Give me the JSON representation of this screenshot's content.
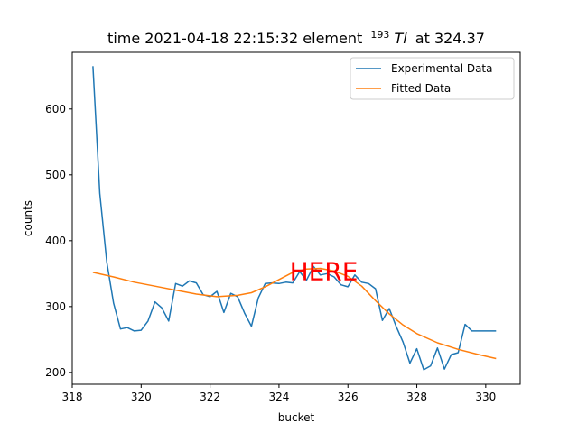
{
  "chart_data": {
    "type": "line",
    "title_main": "time 2021-04-18 22:15:32 element",
    "title_isotope_mass": "193",
    "title_element": "Tl",
    "title_suffix": "at 324.37",
    "xlabel": "bucket",
    "ylabel": "counts",
    "xlim": [
      318,
      331
    ],
    "ylim": [
      182,
      686
    ],
    "xticks": [
      318,
      320,
      322,
      324,
      326,
      328,
      330
    ],
    "yticks": [
      200,
      300,
      400,
      500,
      600
    ],
    "grid": false,
    "legend_position": "top-right",
    "annotation": {
      "text": "HERE",
      "x": 325.3,
      "y": 340,
      "color": "#ff0000"
    },
    "series": [
      {
        "name": "Experimental Data",
        "color": "#1f77b4",
        "x": [
          318.6,
          318.8,
          319.0,
          319.2,
          319.4,
          319.6,
          319.8,
          320.0,
          320.2,
          320.4,
          320.6,
          320.8,
          321.0,
          321.2,
          321.4,
          321.6,
          321.8,
          322.0,
          322.2,
          322.4,
          322.6,
          322.8,
          323.0,
          323.2,
          323.4,
          323.6,
          323.8,
          324.0,
          324.2,
          324.4,
          324.6,
          324.8,
          325.0,
          325.2,
          325.4,
          325.6,
          325.8,
          326.0,
          326.2,
          326.4,
          326.6,
          326.8,
          327.0,
          327.2,
          327.4,
          327.6,
          327.8,
          328.0,
          328.2,
          328.4,
          328.6,
          328.8,
          329.0,
          329.2,
          329.4,
          329.6,
          329.8,
          330.0,
          330.2,
          330.3
        ],
        "y": [
          665,
          472,
          368,
          305,
          266,
          268,
          263,
          264,
          278,
          307,
          298,
          278,
          335,
          331,
          339,
          336,
          318,
          315,
          323,
          291,
          320,
          315,
          290,
          270,
          313,
          335,
          336,
          335,
          337,
          336,
          353,
          340,
          361,
          348,
          350,
          345,
          333,
          330,
          348,
          337,
          335,
          327,
          279,
          297,
          270,
          246,
          214,
          236,
          204,
          210,
          237,
          205,
          227,
          230,
          273,
          263,
          263,
          263,
          263,
          263
        ]
      },
      {
        "name": "Fitted Data",
        "color": "#ff7f0e",
        "x": [
          318.6,
          319.2,
          319.8,
          320.4,
          321.0,
          321.6,
          322.2,
          322.8,
          323.2,
          323.6,
          324.0,
          324.4,
          324.8,
          325.2,
          325.6,
          326.0,
          326.4,
          326.8,
          327.2,
          327.6,
          328.0,
          328.6,
          329.2,
          329.8,
          330.3
        ],
        "y": [
          352,
          345,
          337,
          331,
          325,
          319,
          315,
          317,
          321,
          330,
          341,
          352,
          357,
          358,
          354,
          346,
          331,
          309,
          289,
          272,
          259,
          245,
          235,
          227,
          221
        ]
      }
    ]
  }
}
